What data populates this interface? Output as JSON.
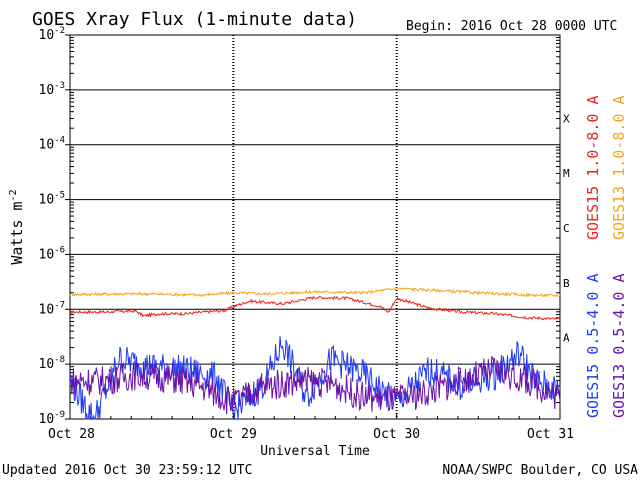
{
  "chart_data": {
    "type": "line",
    "title": "GOES Xray Flux (1-minute data)",
    "begin_label": "Begin:  2016 Oct 28 0000 UTC",
    "xlabel": "Universal Time",
    "ylabel_base": "Watts m",
    "ylabel_exp": "-2",
    "x_ticks": [
      "Oct 28",
      "Oct 29",
      "Oct 30",
      "Oct 31"
    ],
    "x_range_days": [
      0,
      3
    ],
    "ylim_log10": [
      -9,
      -2
    ],
    "y_ticks": [
      {
        "base": "10",
        "exp": "-2"
      },
      {
        "base": "10",
        "exp": "-3"
      },
      {
        "base": "10",
        "exp": "-4"
      },
      {
        "base": "10",
        "exp": "-5"
      },
      {
        "base": "10",
        "exp": "-6"
      },
      {
        "base": "10",
        "exp": "-7"
      },
      {
        "base": "10",
        "exp": "-8"
      },
      {
        "base": "10",
        "exp": "-9"
      }
    ],
    "flare_classes": [
      {
        "label": "X",
        "log10": -3.5
      },
      {
        "label": "M",
        "log10": -4.5
      },
      {
        "label": "C",
        "log10": -5.5
      },
      {
        "label": "B",
        "log10": -6.5
      },
      {
        "label": "A",
        "log10": -7.5
      }
    ],
    "series": [
      {
        "name": "GOES15 1.0-8.0 A",
        "color": "#e8271e",
        "t": [
          0,
          0.2,
          0.4,
          0.45,
          0.55,
          0.7,
          0.95,
          1.0,
          1.1,
          1.3,
          1.5,
          1.7,
          1.9,
          1.95,
          2.0,
          2.2,
          2.4,
          2.6,
          2.8,
          3.0
        ],
        "log10": [
          -7.05,
          -7.05,
          -7.03,
          -7.12,
          -7.08,
          -7.08,
          -7.02,
          -6.95,
          -6.85,
          -6.9,
          -6.78,
          -6.8,
          -6.95,
          -7.05,
          -6.8,
          -6.98,
          -7.05,
          -7.08,
          -7.15,
          -7.18
        ]
      },
      {
        "name": "GOES13 1.0-8.0 A",
        "color": "#f5a41c",
        "t": [
          0,
          0.3,
          0.5,
          0.8,
          1.0,
          1.2,
          1.5,
          1.8,
          2.0,
          2.2,
          2.5,
          2.8,
          3.0
        ],
        "log10": [
          -6.73,
          -6.72,
          -6.72,
          -6.74,
          -6.7,
          -6.72,
          -6.68,
          -6.7,
          -6.62,
          -6.65,
          -6.7,
          -6.74,
          -6.75
        ]
      },
      {
        "name": "GOES15 0.5-4.0 A",
        "color": "#1f3bf5",
        "t": [
          0,
          0.1,
          0.15,
          0.3,
          0.5,
          0.7,
          0.9,
          1.0,
          1.2,
          1.3,
          1.45,
          1.6,
          1.8,
          1.95,
          2.0,
          2.2,
          2.4,
          2.6,
          2.75,
          2.85,
          3.0
        ],
        "log10": [
          -8.3,
          -8.8,
          -9.0,
          -7.9,
          -8.05,
          -8.1,
          -8.25,
          -8.9,
          -8.3,
          -7.6,
          -8.6,
          -7.9,
          -8.2,
          -8.6,
          -8.7,
          -8.1,
          -8.4,
          -8.2,
          -7.8,
          -8.3,
          -8.5
        ]
      },
      {
        "name": "GOES13 0.5-4.0 A",
        "color": "#6a13a8",
        "t": [
          0,
          0.2,
          0.4,
          0.6,
          0.8,
          1.0,
          1.2,
          1.4,
          1.6,
          1.8,
          2.0,
          2.2,
          2.4,
          2.6,
          2.8,
          3.0
        ],
        "log10": [
          -8.3,
          -8.3,
          -8.2,
          -8.25,
          -8.4,
          -8.7,
          -8.4,
          -8.3,
          -8.35,
          -8.6,
          -8.65,
          -8.5,
          -8.3,
          -8.1,
          -8.3,
          -8.6
        ]
      }
    ],
    "legend_right": [
      "GOES15 1.0-8.0 A",
      "GOES13 1.0-8.0 A"
    ],
    "legend_right_lower": [
      "GOES15 0.5-4.0 A",
      "GOES13 0.5-4.0 A"
    ]
  },
  "footer": {
    "updated": "Updated 2016 Oct 30 23:59:12 UTC",
    "source": "NOAA/SWPC Boulder, CO USA"
  },
  "colors": {
    "goes15_long": "#e8271e",
    "goes13_long": "#f5a41c",
    "goes15_short": "#1f3bf5",
    "goes13_short": "#6a13a8",
    "axis": "#000000"
  }
}
